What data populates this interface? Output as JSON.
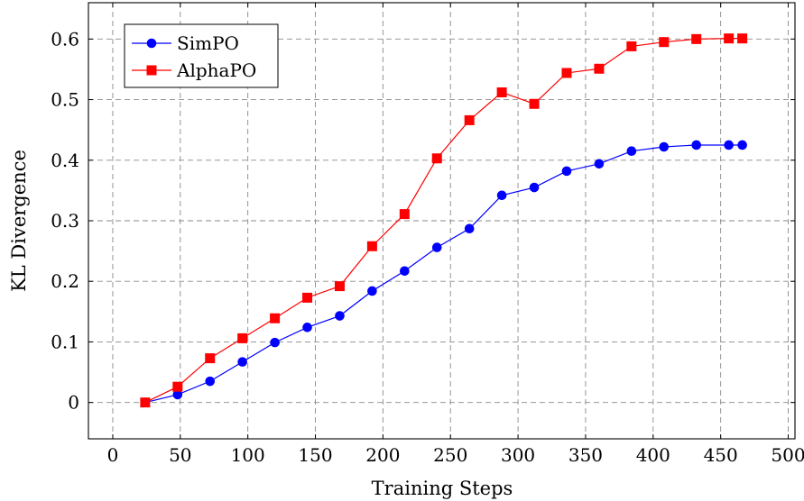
{
  "chart_data": {
    "type": "line",
    "xlabel": "Training Steps",
    "ylabel": "KL Divergence",
    "xlim": [
      -18,
      505
    ],
    "ylim": [
      -0.06,
      0.66
    ],
    "x_ticks": [
      0,
      50,
      100,
      150,
      200,
      250,
      300,
      350,
      400,
      450,
      500
    ],
    "y_ticks": [
      0,
      0.1,
      0.2,
      0.3,
      0.4,
      0.5,
      0.6
    ],
    "x_tick_labels": [
      "0",
      "50",
      "100",
      "150",
      "200",
      "250",
      "300",
      "350",
      "400",
      "450",
      "500"
    ],
    "y_tick_labels": [
      "0",
      "0.1",
      "0.2",
      "0.3",
      "0.4",
      "0.5",
      "0.6"
    ],
    "grid": true,
    "legend_position": "top-left",
    "series": [
      {
        "name": "SimPO",
        "color": "#0000ff",
        "marker": "circle",
        "x": [
          24,
          48,
          72,
          96,
          120,
          144,
          168,
          192,
          216,
          240,
          264,
          288,
          312,
          336,
          360,
          384,
          408,
          432,
          456,
          466
        ],
        "y": [
          0.0,
          0.013,
          0.035,
          0.067,
          0.099,
          0.124,
          0.143,
          0.184,
          0.217,
          0.256,
          0.287,
          0.342,
          0.355,
          0.382,
          0.394,
          0.415,
          0.422,
          0.425,
          0.425,
          0.425
        ]
      },
      {
        "name": "AlphaPO",
        "color": "#ff0000",
        "marker": "square",
        "x": [
          24,
          48,
          72,
          96,
          120,
          144,
          168,
          192,
          216,
          240,
          264,
          288,
          312,
          336,
          360,
          384,
          408,
          432,
          456,
          466
        ],
        "y": [
          0.0,
          0.026,
          0.073,
          0.106,
          0.139,
          0.173,
          0.192,
          0.258,
          0.311,
          0.403,
          0.466,
          0.512,
          0.493,
          0.544,
          0.551,
          0.588,
          0.595,
          0.6,
          0.601,
          0.601
        ]
      }
    ]
  }
}
